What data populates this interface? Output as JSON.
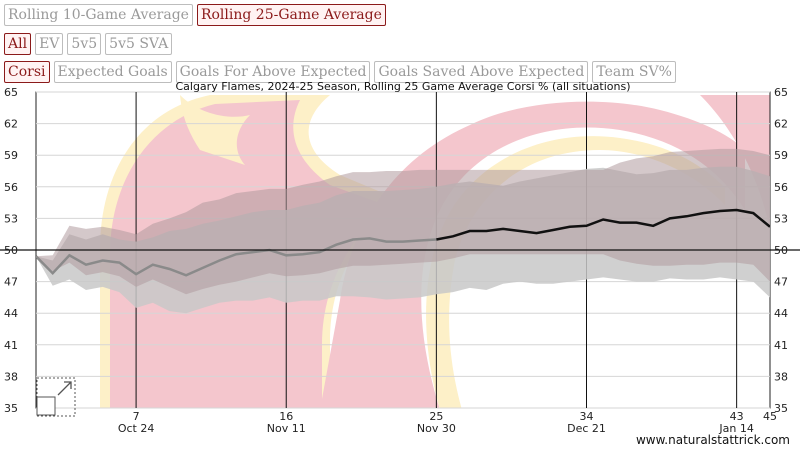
{
  "controls": {
    "window_buttons": [
      {
        "label": "Rolling 10-Game Average",
        "active": false
      },
      {
        "label": "Rolling 25-Game Average",
        "active": true
      }
    ],
    "situation_buttons": [
      {
        "label": "All",
        "active": true
      },
      {
        "label": "EV",
        "active": false
      },
      {
        "label": "5v5",
        "active": false
      },
      {
        "label": "5v5 SVA",
        "active": false
      }
    ],
    "metric_buttons": [
      {
        "label": "Corsi",
        "active": true
      },
      {
        "label": "Expected Goals",
        "active": false
      },
      {
        "label": "Goals For Above Expected",
        "active": false
      },
      {
        "label": "Goals Saved Above Expected",
        "active": false
      },
      {
        "label": "Team SV%",
        "active": false
      }
    ]
  },
  "credit": "www.naturalstattrick.com",
  "colors": {
    "logo_red": "#f4c6cd",
    "logo_gold": "#fdf0c8",
    "band_gray": "#c8c8c8",
    "band_dark": "#b09a9f",
    "line_gray": "#8a8a8a",
    "line_black": "#111111",
    "active_button": "#8b1a1a"
  },
  "chart_data": {
    "type": "line",
    "title": "Calgary Flames, 2024-25 Season, Rolling 25 Game Average Corsi % (all situations)",
    "xlabel": "",
    "ylabel": "",
    "xlim": [
      1,
      45
    ],
    "ylim": [
      35,
      65
    ],
    "yticks": [
      35,
      38,
      41,
      44,
      47,
      50,
      53,
      56,
      59,
      62,
      65
    ],
    "xticks": [
      {
        "game": 7,
        "date": "Oct 24"
      },
      {
        "game": 16,
        "date": "Nov 11"
      },
      {
        "game": 25,
        "date": "Nov 30"
      },
      {
        "game": 34,
        "date": "Dec 21"
      },
      {
        "game": 43,
        "date": "Jan 14"
      },
      {
        "game": 45,
        "date": ""
      }
    ],
    "reference_line": 50,
    "grid": true,
    "rolling_corsi_pct": {
      "x": [
        1,
        2,
        3,
        4,
        5,
        6,
        7,
        8,
        9,
        10,
        11,
        12,
        13,
        14,
        15,
        16,
        17,
        18,
        19,
        20,
        21,
        22,
        23,
        24,
        25,
        26,
        27,
        28,
        29,
        30,
        31,
        32,
        33,
        34,
        35,
        36,
        37,
        38,
        39,
        40,
        41,
        42,
        43,
        44,
        45
      ],
      "y": [
        49.4,
        47.8,
        49.5,
        48.6,
        49.0,
        48.8,
        47.7,
        48.6,
        48.2,
        47.6,
        48.3,
        49.0,
        49.6,
        49.8,
        50.0,
        49.5,
        49.6,
        49.8,
        50.5,
        51.0,
        51.1,
        50.8,
        50.8,
        50.9,
        51.0,
        51.3,
        51.8,
        51.8,
        52.0,
        51.8,
        51.6,
        51.9,
        52.2,
        52.3,
        52.9,
        52.6,
        52.6,
        52.3,
        53.0,
        53.2,
        53.5,
        53.7,
        53.8,
        53.5,
        52.2
      ]
    },
    "outer_band": {
      "upper": [
        49.4,
        49.0,
        51.5,
        51.0,
        51.5,
        51.0,
        50.8,
        51.2,
        51.8,
        52.0,
        52.5,
        52.8,
        53.2,
        53.6,
        53.8,
        53.8,
        54.2,
        54.5,
        55.2,
        55.6,
        55.6,
        55.6,
        55.7,
        55.8,
        56.0,
        56.3,
        56.5,
        56.3,
        56.1,
        56.5,
        56.8,
        57.1,
        57.4,
        57.7,
        57.8,
        57.5,
        57.2,
        57.3,
        57.6,
        57.6,
        57.8,
        57.9,
        57.9,
        57.5,
        57.0
      ],
      "lower": [
        49.4,
        46.6,
        47.2,
        46.2,
        46.5,
        46.0,
        44.5,
        45.0,
        44.2,
        44.0,
        44.5,
        45.0,
        45.2,
        45.2,
        45.5,
        45.0,
        45.2,
        45.2,
        45.6,
        45.6,
        45.5,
        45.3,
        45.4,
        45.5,
        45.8,
        46.0,
        46.4,
        46.2,
        46.8,
        47.0,
        46.8,
        46.8,
        47.0,
        47.2,
        47.4,
        47.2,
        47.0,
        47.0,
        47.3,
        47.2,
        47.2,
        47.4,
        47.2,
        47.0,
        45.5
      ]
    },
    "inner_band": {
      "upper": [
        49.4,
        49.5,
        52.3,
        52.0,
        52.2,
        51.9,
        51.5,
        52.5,
        53.0,
        53.6,
        54.5,
        54.8,
        55.4,
        55.6,
        55.8,
        55.8,
        56.2,
        56.5,
        57.0,
        57.4,
        57.4,
        57.5,
        57.5,
        57.6,
        57.6,
        57.6,
        57.6,
        57.6,
        57.6,
        57.6,
        57.6,
        57.6,
        57.6,
        57.6,
        57.6,
        58.3,
        58.7,
        58.9,
        59.3,
        59.4,
        59.5,
        59.6,
        59.6,
        59.4,
        59.0
      ],
      "lower": [
        49.4,
        48.0,
        48.8,
        47.6,
        47.9,
        47.5,
        46.5,
        47.2,
        46.5,
        45.8,
        46.3,
        46.7,
        47.0,
        47.4,
        47.8,
        47.5,
        47.6,
        47.8,
        48.2,
        48.5,
        48.5,
        48.6,
        48.7,
        48.8,
        48.9,
        49.2,
        49.6,
        49.6,
        49.6,
        49.6,
        49.6,
        49.6,
        49.6,
        49.6,
        49.6,
        49.0,
        48.7,
        48.5,
        48.5,
        48.6,
        48.6,
        48.8,
        48.8,
        48.6,
        47.0
      ]
    }
  }
}
